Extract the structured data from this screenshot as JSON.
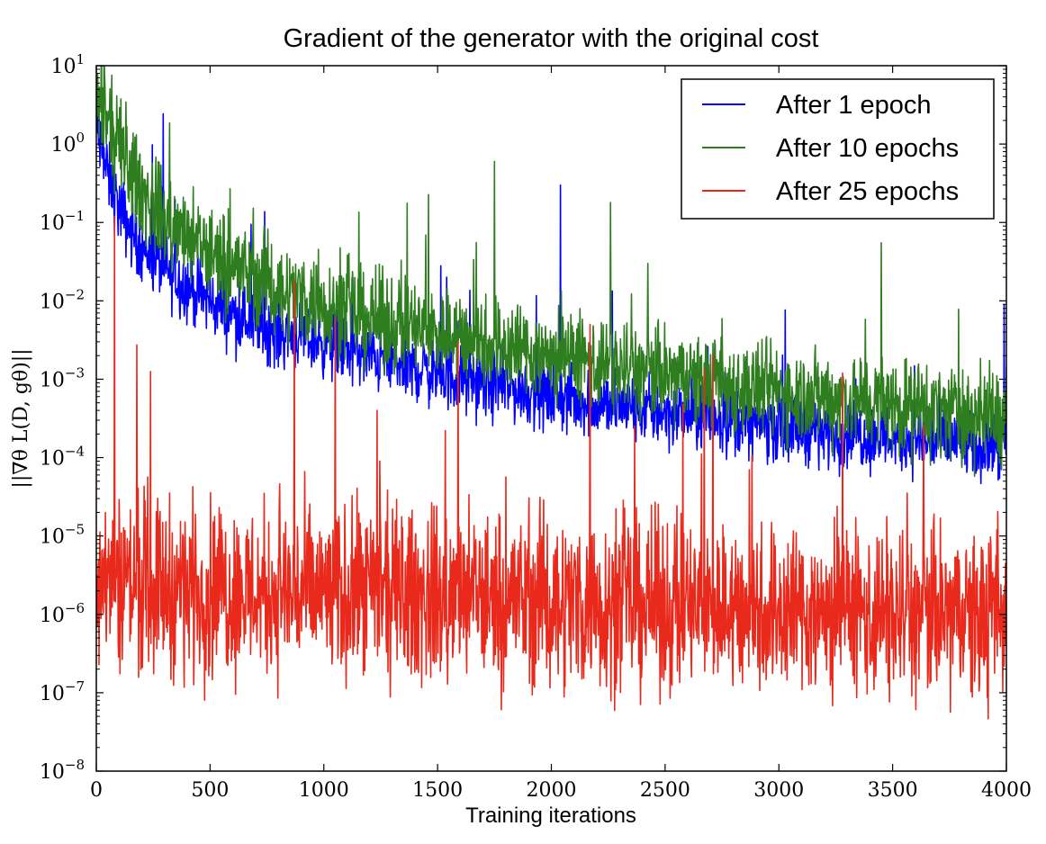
{
  "chart_data": {
    "type": "line",
    "title": "Gradient of the generator with the original cost",
    "xlabel": "Training iterations",
    "ylabel": "||∇θ L(D, gθ)||",
    "xlim": [
      0,
      4000
    ],
    "ylim": [
      1e-08,
      10
    ],
    "yscale": "log",
    "x_ticks": [
      0,
      500,
      1000,
      1500,
      2000,
      2500,
      3000,
      3500,
      4000
    ],
    "x_tick_labels": [
      "0",
      "500",
      "1000",
      "1500",
      "2000",
      "2500",
      "3000",
      "3500",
      "4000"
    ],
    "y_tick_labels": [
      {
        "base": "10",
        "exp": "1"
      },
      {
        "base": "10",
        "exp": "0"
      },
      {
        "base": "10",
        "exp": "−1"
      },
      {
        "base": "10",
        "exp": "−2"
      },
      {
        "base": "10",
        "exp": "−3"
      },
      {
        "base": "10",
        "exp": "−4"
      },
      {
        "base": "10",
        "exp": "−5"
      },
      {
        "base": "10",
        "exp": "−6"
      },
      {
        "base": "10",
        "exp": "−7"
      },
      {
        "base": "10",
        "exp": "−8"
      }
    ],
    "legend": "top-right",
    "grid": false,
    "series": [
      {
        "name": "After 1 epoch",
        "color": "#0000ff",
        "x": [
          0,
          25,
          50,
          100,
          150,
          200,
          300,
          400,
          500,
          600,
          700,
          800,
          1000,
          1200,
          1400,
          1600,
          1800,
          2000,
          2200,
          2500,
          2800,
          3000,
          3200,
          3500,
          3800,
          4000
        ],
        "y": [
          1.5,
          0.8,
          0.4,
          0.15,
          0.08,
          0.05,
          0.025,
          0.015,
          0.01,
          0.007,
          0.005,
          0.004,
          0.003,
          0.002,
          0.0014,
          0.001,
          0.0008,
          0.0006,
          0.0005,
          0.00038,
          0.0003,
          0.00026,
          0.00022,
          0.00018,
          0.00015,
          0.00013
        ]
      },
      {
        "name": "After 10 epochs",
        "color": "#2e7d1e",
        "x": [
          0,
          25,
          50,
          100,
          150,
          200,
          300,
          400,
          500,
          600,
          700,
          800,
          1000,
          1200,
          1400,
          1600,
          1800,
          2000,
          2200,
          2500,
          2800,
          3000,
          3200,
          3500,
          3800,
          4000
        ],
        "y": [
          3.0,
          2.5,
          1.8,
          0.9,
          0.45,
          0.25,
          0.11,
          0.06,
          0.04,
          0.028,
          0.02,
          0.014,
          0.009,
          0.006,
          0.0045,
          0.0035,
          0.0027,
          0.002,
          0.0016,
          0.0011,
          0.0008,
          0.0007,
          0.0006,
          0.00048,
          0.00038,
          0.00033
        ]
      },
      {
        "name": "After 25 epochs",
        "color": "#e8291b",
        "x": [
          0,
          25,
          50,
          100,
          150,
          200,
          300,
          400,
          500,
          600,
          700,
          800,
          1000,
          1200,
          1400,
          1600,
          1800,
          2000,
          2200,
          2500,
          2800,
          3000,
          3200,
          3500,
          3800,
          4000
        ],
        "y": [
          5e-06,
          4e-06,
          3.5e-06,
          3e-06,
          2.8e-06,
          2.5e-06,
          2.3e-06,
          2.2e-06,
          2e-06,
          2e-06,
          1.9e-06,
          1.9e-06,
          1.8e-06,
          1.8e-06,
          1.7e-06,
          1.6e-06,
          1.6e-06,
          1.5e-06,
          1.4e-06,
          1.3e-06,
          1.2e-06,
          1.15e-06,
          1.1e-06,
          1e-06,
          9.5e-07,
          9e-07
        ]
      }
    ]
  }
}
